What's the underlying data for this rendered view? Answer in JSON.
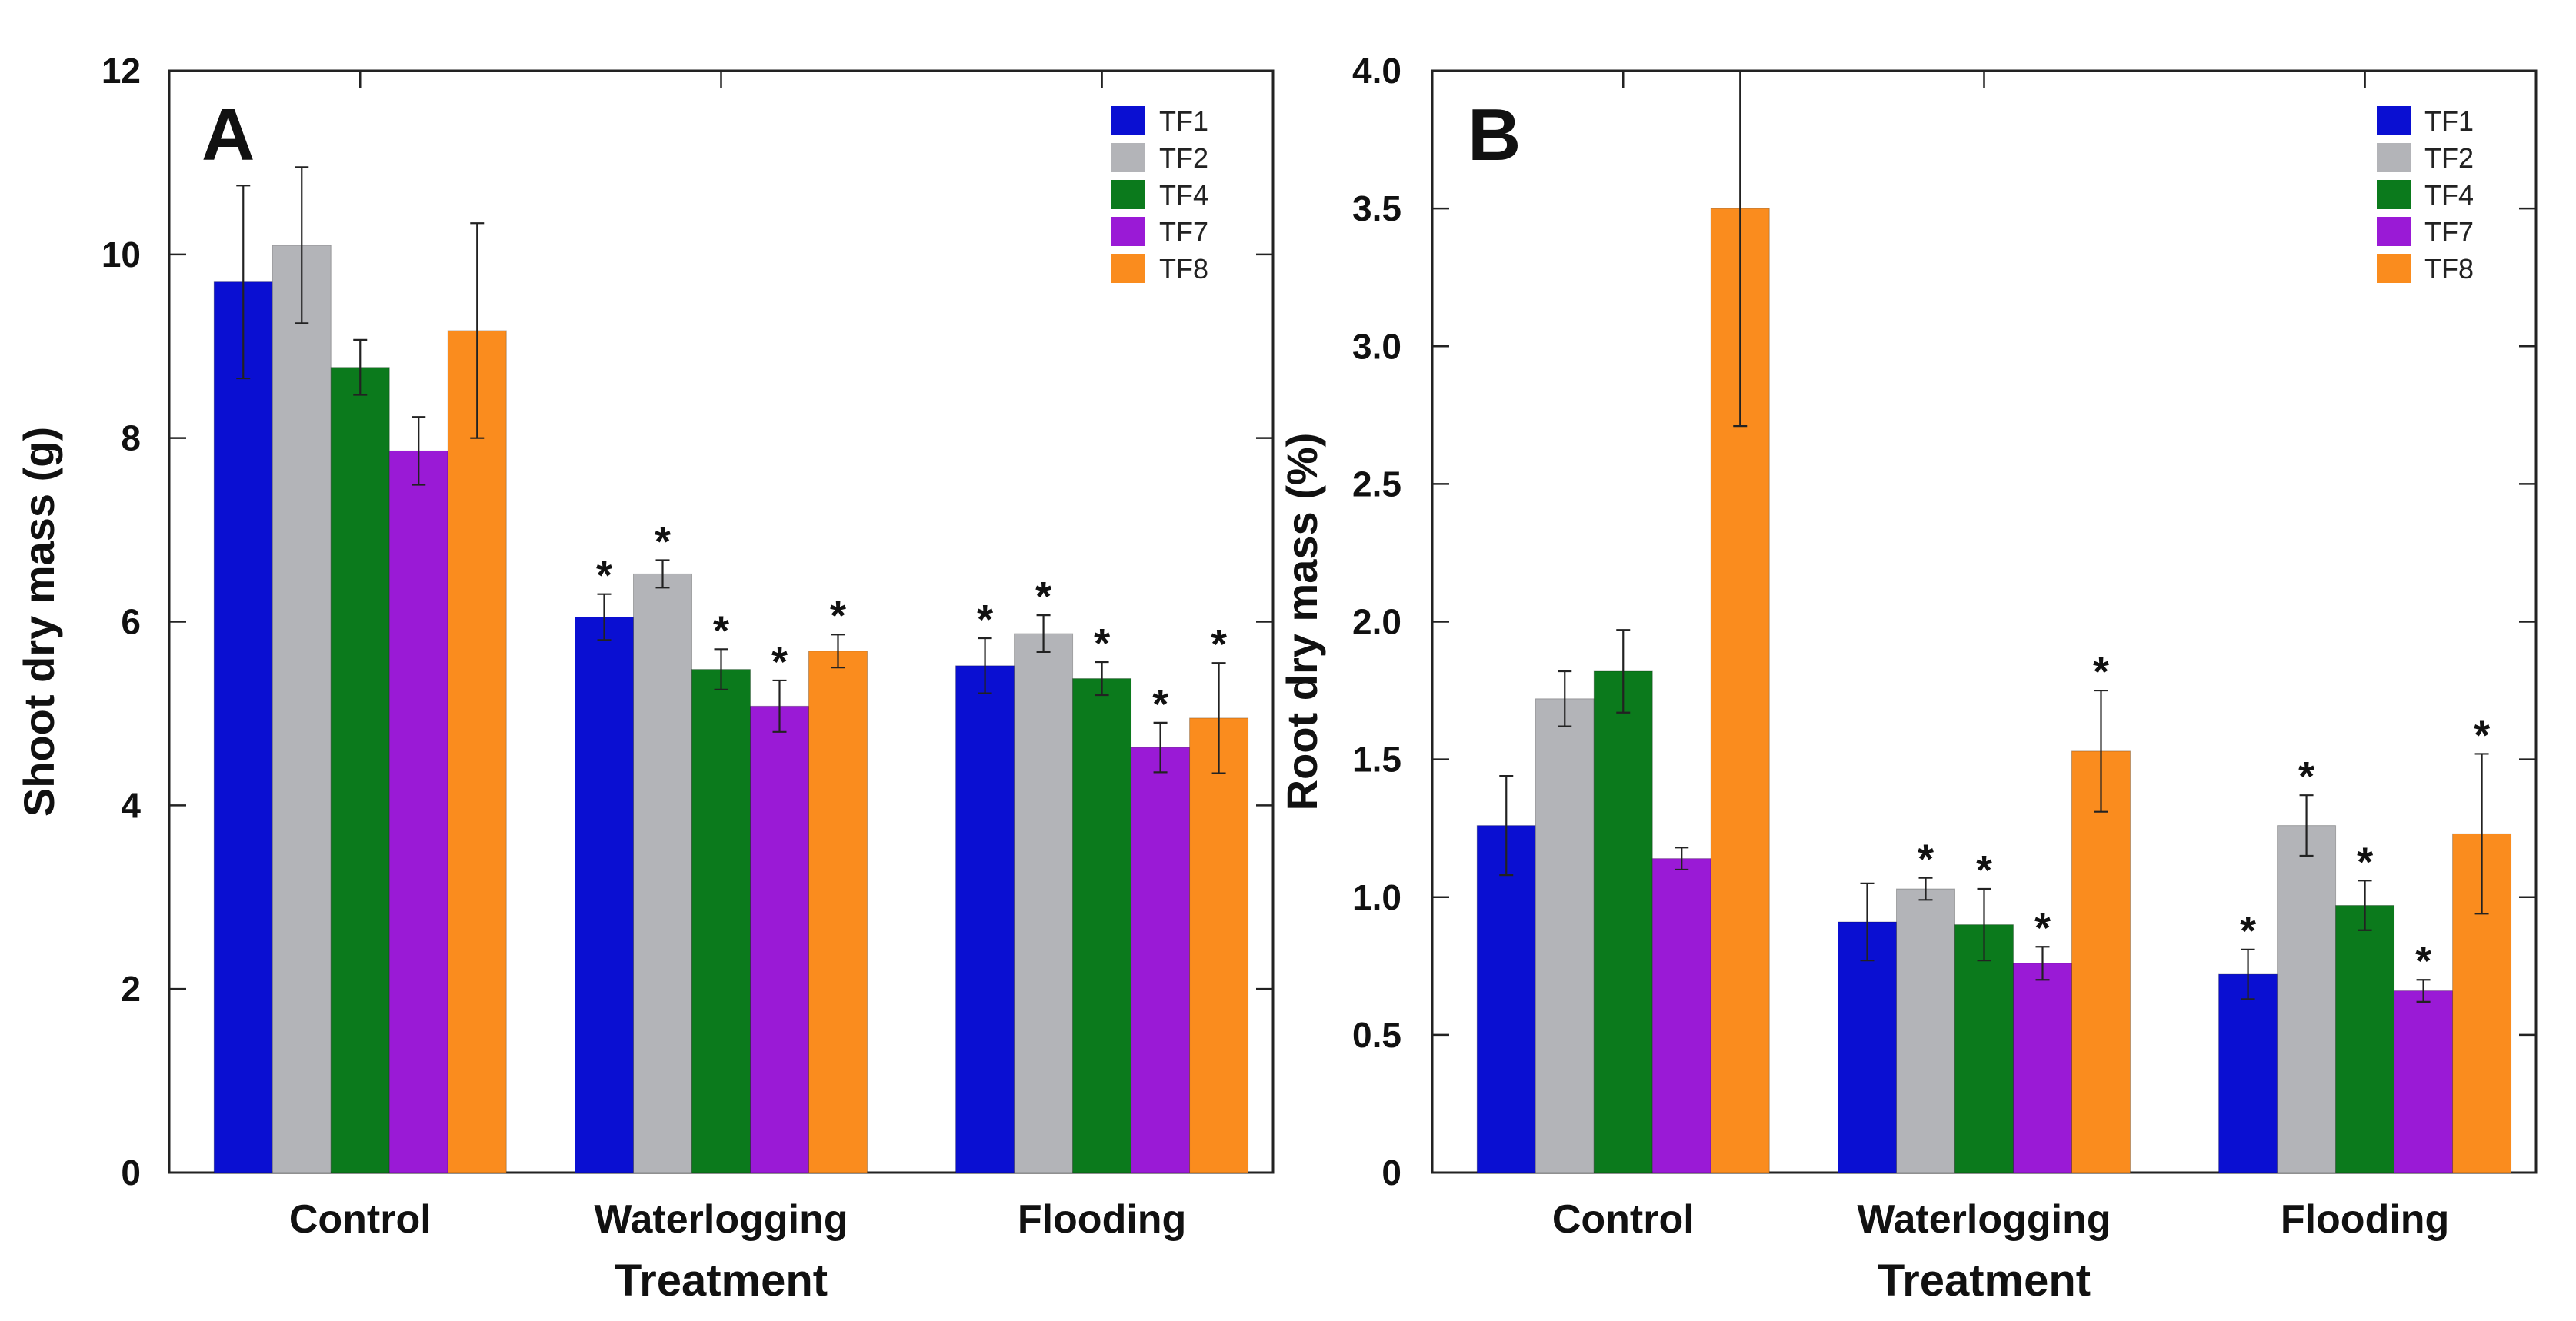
{
  "chart_data": [
    {
      "type": "bar",
      "panel_label": "A",
      "title": "",
      "xlabel": "Treatment",
      "ylabel": "Shoot dry mass (g)",
      "ylim": [
        0,
        12
      ],
      "yticks": [
        "0",
        "2",
        "4",
        "6",
        "8",
        "10",
        "12"
      ],
      "ytick_values": [
        0,
        2,
        4,
        6,
        8,
        10,
        12
      ],
      "categories": [
        "Control",
        "Waterlogging",
        "Flooding"
      ],
      "legend_position": "top-right",
      "series": [
        {
          "name": "TF1",
          "color": "#0a0fd2",
          "values": [
            9.7,
            6.05,
            5.52
          ],
          "errors": [
            1.05,
            0.25,
            0.3
          ],
          "significant": [
            false,
            true,
            true
          ]
        },
        {
          "name": "TF2",
          "color": "#b3b4b8",
          "values": [
            10.1,
            6.52,
            5.87
          ],
          "errors": [
            0.85,
            0.15,
            0.2
          ],
          "significant": [
            false,
            true,
            true
          ]
        },
        {
          "name": "TF4",
          "color": "#0b7a1c",
          "values": [
            8.77,
            5.48,
            5.38
          ],
          "errors": [
            0.3,
            0.22,
            0.18
          ],
          "significant": [
            false,
            true,
            true
          ]
        },
        {
          "name": "TF7",
          "color": "#9a1ad6",
          "values": [
            7.86,
            5.08,
            4.63
          ],
          "errors": [
            0.37,
            0.28,
            0.27
          ],
          "significant": [
            false,
            true,
            true
          ]
        },
        {
          "name": "TF8",
          "color": "#fa8c1e",
          "values": [
            9.17,
            5.68,
            4.95
          ],
          "errors": [
            1.17,
            0.18,
            0.6
          ],
          "significant": [
            false,
            true,
            true
          ]
        }
      ],
      "annotation_marker": "*"
    },
    {
      "type": "bar",
      "panel_label": "B",
      "title": "",
      "xlabel": "Treatment",
      "ylabel": "Root dry mass (%)",
      "ylim": [
        0,
        4.0
      ],
      "yticks": [
        "0",
        "0.5",
        "1.0",
        "1.5",
        "2.0",
        "2.5",
        "3.0",
        "3.5",
        "4.0"
      ],
      "ytick_values": [
        0,
        0.5,
        1.0,
        1.5,
        2.0,
        2.5,
        3.0,
        3.5,
        4.0
      ],
      "categories": [
        "Control",
        "Waterlogging",
        "Flooding"
      ],
      "legend_position": "top-right",
      "series": [
        {
          "name": "TF1",
          "color": "#0a0fd2",
          "values": [
            1.26,
            0.91,
            0.72
          ],
          "errors": [
            0.18,
            0.14,
            0.09
          ],
          "significant": [
            false,
            false,
            true
          ]
        },
        {
          "name": "TF2",
          "color": "#b3b4b8",
          "values": [
            1.72,
            1.03,
            1.26
          ],
          "errors": [
            0.1,
            0.04,
            0.11
          ],
          "significant": [
            false,
            true,
            true
          ]
        },
        {
          "name": "TF4",
          "color": "#0b7a1c",
          "values": [
            1.82,
            0.9,
            0.97
          ],
          "errors": [
            0.15,
            0.13,
            0.09
          ],
          "significant": [
            false,
            true,
            true
          ]
        },
        {
          "name": "TF7",
          "color": "#9a1ad6",
          "values": [
            1.14,
            0.76,
            0.66
          ],
          "errors": [
            0.04,
            0.06,
            0.04
          ],
          "significant": [
            false,
            true,
            true
          ]
        },
        {
          "name": "TF8",
          "color": "#fa8c1e",
          "values": [
            3.5,
            1.53,
            1.23
          ],
          "errors": [
            0.79,
            0.22,
            0.29
          ],
          "significant": [
            false,
            true,
            true
          ]
        }
      ],
      "annotation_marker": "*"
    }
  ]
}
